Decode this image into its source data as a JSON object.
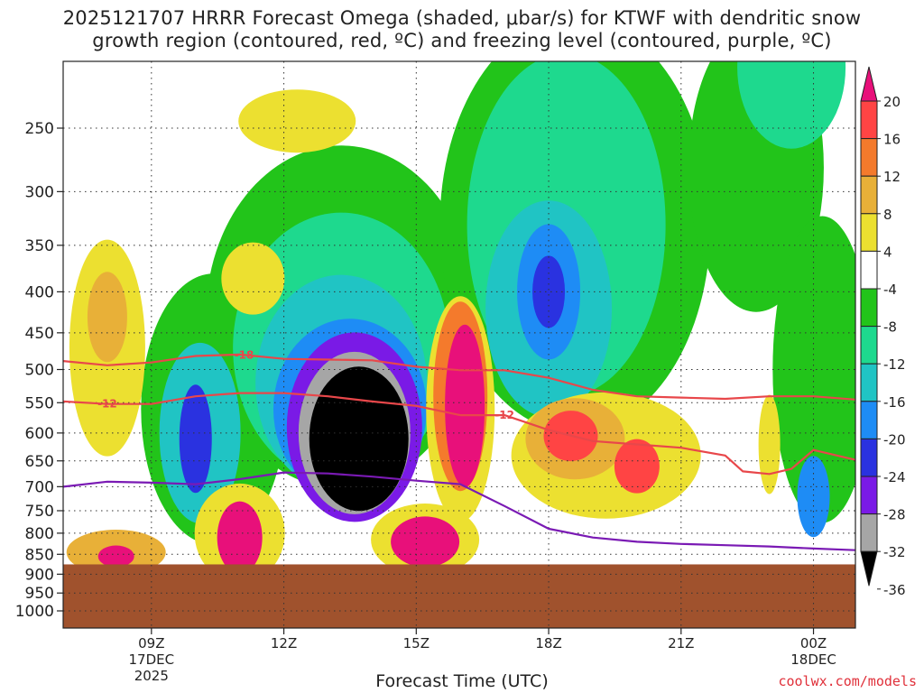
{
  "title": {
    "line1": "2025121707 HRRR Forecast Omega (shaded, μbar/s) for KTWF with dendritic snow",
    "line2": "growth region (contoured, red, ºC) and freezing level (contoured, purple, ºC)"
  },
  "footer": "coolwx.com/models",
  "chart_data": {
    "type": "heatmap",
    "xlabel": "Forecast Time (UTC)",
    "ylabel": "",
    "y_ticks": [
      250,
      300,
      350,
      400,
      450,
      500,
      550,
      600,
      650,
      700,
      750,
      800,
      850,
      900,
      950,
      1000
    ],
    "y_scale": "log-pressure",
    "ylim": [
      1050,
      200
    ],
    "x_ticks": [
      {
        "hour": 9,
        "label": "09Z",
        "sub1": "17DEC",
        "sub2": "2025"
      },
      {
        "hour": 12,
        "label": "12Z",
        "sub1": "",
        "sub2": ""
      },
      {
        "hour": 15,
        "label": "15Z",
        "sub1": "",
        "sub2": ""
      },
      {
        "hour": 18,
        "label": "18Z",
        "sub1": "",
        "sub2": ""
      },
      {
        "hour": 21,
        "label": "21Z",
        "sub1": "",
        "sub2": ""
      },
      {
        "hour": 24,
        "label": "00Z",
        "sub1": "18DEC",
        "sub2": ""
      }
    ],
    "xlim": [
      7.0,
      24.95
    ],
    "grid": true,
    "colorbar_labels": [
      20,
      16,
      12,
      8,
      4,
      -4,
      -8,
      -12,
      -16,
      -20,
      -24,
      -28,
      -32,
      -36
    ],
    "colorbar_colors": [
      "#e8107a",
      "#ff4444",
      "#f47a2c",
      "#e8b038",
      "#ece030",
      "#ffffff",
      "#22c41a",
      "#1ed98e",
      "#20c4c4",
      "#1e8cf5",
      "#2a32e0",
      "#7a1ae6",
      "#a6a6a6",
      "#000000"
    ],
    "surface_pressure": 875,
    "surface_color": "#a0522d",
    "omega_features": [
      {
        "hour": 8.0,
        "p": 430,
        "value": 10,
        "label": "mid-level ascent-free region"
      },
      {
        "hour": 13.6,
        "p": 620,
        "value": -38,
        "label": "strongest upward motion core"
      },
      {
        "hour": 16.1,
        "p": 550,
        "value": 22,
        "label": "strong subsidence"
      },
      {
        "hour": 18.0,
        "p": 400,
        "value": -24,
        "label": "upper upward motion"
      },
      {
        "hour": 18.4,
        "p": 600,
        "value": 16,
        "label": "subsidence"
      },
      {
        "hour": 9.9,
        "p": 640,
        "value": -26,
        "label": "upward motion column"
      },
      {
        "hour": 24.0,
        "p": 740,
        "value": -22,
        "label": "upward motion"
      }
    ],
    "series": [
      {
        "name": "-18",
        "color": "#e8474a",
        "x": [
          7.0,
          8.0,
          9.0,
          10.0,
          11.0,
          12.0,
          13.0,
          14.0,
          15.0,
          16.0,
          17.0,
          18.0,
          19.0,
          20.0,
          21.0,
          22.0,
          23.0,
          24.0,
          24.95
        ],
        "y": [
          488,
          494,
          490,
          481,
          479,
          485,
          486,
          487,
          496,
          501,
          501,
          512,
          530,
          540,
          542,
          544,
          540,
          540,
          545
        ]
      },
      {
        "name": "-12",
        "color": "#e8474a",
        "x": [
          7.0,
          8.0,
          9.0,
          10.0,
          11.0,
          12.0,
          13.0,
          14.0,
          15.0,
          16.0,
          17.0,
          18.0,
          19.0,
          20.0,
          21.0,
          22.0,
          22.4,
          23.0,
          23.5,
          24.0,
          24.95
        ],
        "y": [
          548,
          552,
          552,
          540,
          535,
          535,
          540,
          548,
          555,
          570,
          570,
          595,
          614,
          620,
          626,
          640,
          670,
          675,
          665,
          630,
          648
        ]
      },
      {
        "name": "0",
        "color": "#7a1ab4",
        "x": [
          7.0,
          8.0,
          9.0,
          10.0,
          11.0,
          12.0,
          13.0,
          14.0,
          15.0,
          16.0,
          17.0,
          18.0,
          19.0,
          20.0,
          21.0,
          22.0,
          23.0,
          24.0,
          24.95
        ],
        "y": [
          700,
          690,
          692,
          695,
          685,
          672,
          674,
          680,
          688,
          695,
          740,
          790,
          810,
          820,
          825,
          828,
          831,
          836,
          840
        ]
      }
    ],
    "contour_labels": [
      {
        "series": "-18",
        "text": "-18",
        "hour": 11.1,
        "p": 480
      },
      {
        "series": "-12",
        "text": "-12",
        "hour": 8.0,
        "p": 552
      },
      {
        "series": "-12",
        "text": "-12",
        "hour": 17.0,
        "p": 570
      }
    ]
  }
}
